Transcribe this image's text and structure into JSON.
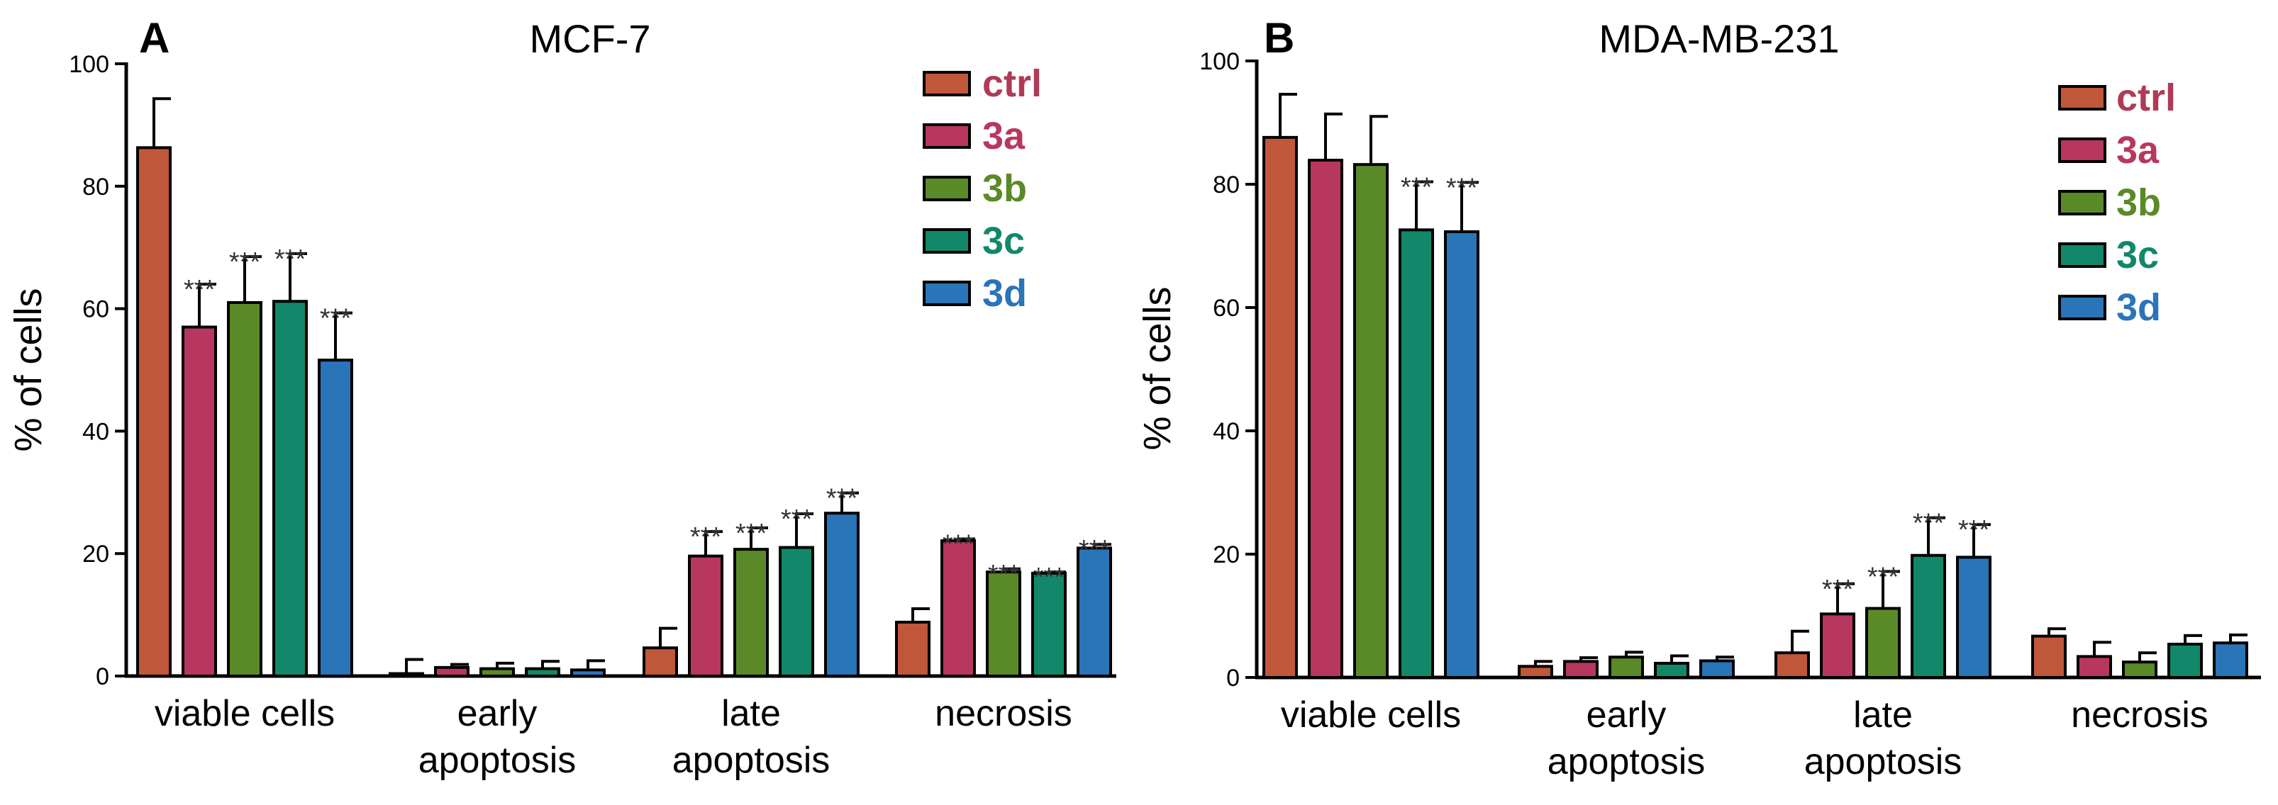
{
  "chart_data": [
    {
      "type": "bar",
      "panel": "A",
      "title": "MCF-7",
      "xlabel": "",
      "ylabel": "% of cells",
      "ylim": [
        0,
        100
      ],
      "yticks": [
        0,
        20,
        40,
        60,
        80,
        100
      ],
      "categories": [
        [
          "viable cells"
        ],
        [
          "early",
          "apoptosis"
        ],
        [
          "late",
          "apoptosis"
        ],
        [
          "necrosis"
        ]
      ],
      "legend_position": "top-right",
      "series": [
        {
          "name": "ctrl",
          "color": "#C0573A",
          "text_color": "#B03A55",
          "values": [
            86.3,
            0.4,
            4.6,
            8.8
          ],
          "errors": [
            8.0,
            2.3,
            3.2,
            2.2
          ],
          "sig": [
            "",
            "",
            "",
            ""
          ]
        },
        {
          "name": "3a",
          "color": "#B8375E",
          "text_color": "#B8375E",
          "values": [
            57.0,
            1.4,
            19.6,
            22.1
          ],
          "errors": [
            7.0,
            0.5,
            4.0,
            0.3
          ],
          "sig": [
            "***",
            "",
            "***",
            "***"
          ]
        },
        {
          "name": "3b",
          "color": "#5A8A28",
          "text_color": "#5A8A28",
          "values": [
            61.0,
            1.2,
            20.7,
            17.0
          ],
          "errors": [
            7.5,
            0.9,
            3.5,
            0.5
          ],
          "sig": [
            "***",
            "",
            "***",
            "***"
          ]
        },
        {
          "name": "3c",
          "color": "#12876A",
          "text_color": "#12876A",
          "values": [
            61.2,
            1.2,
            21.0,
            16.8
          ],
          "errors": [
            7.8,
            1.2,
            5.5,
            0.2
          ],
          "sig": [
            "***",
            "",
            "***",
            "***"
          ]
        },
        {
          "name": "3d",
          "color": "#2A74B8",
          "text_color": "#2A74B8",
          "values": [
            51.6,
            1.0,
            26.6,
            20.9
          ],
          "errors": [
            7.7,
            1.5,
            3.3,
            0.6
          ],
          "sig": [
            "***",
            "",
            "***",
            "***"
          ]
        }
      ]
    },
    {
      "type": "bar",
      "panel": "B",
      "title": "MDA-MB-231",
      "xlabel": "",
      "ylabel": "% of cells",
      "ylim": [
        0,
        100
      ],
      "yticks": [
        0,
        20,
        40,
        60,
        80,
        100
      ],
      "categories": [
        [
          "viable cells"
        ],
        [
          "early",
          "apoptosis"
        ],
        [
          "late",
          "apoptosis"
        ],
        [
          "necrosis"
        ]
      ],
      "legend_position": "top-right",
      "series": [
        {
          "name": "ctrl",
          "color": "#C0573A",
          "text_color": "#B03A55",
          "values": [
            87.6,
            1.8,
            4.0,
            6.7
          ],
          "errors": [
            7.0,
            0.8,
            3.5,
            1.2
          ],
          "sig": [
            "",
            "",
            "",
            ""
          ]
        },
        {
          "name": "3a",
          "color": "#B8375E",
          "text_color": "#B8375E",
          "values": [
            83.9,
            2.6,
            10.3,
            3.4
          ],
          "errors": [
            7.5,
            0.6,
            4.9,
            2.3
          ],
          "sig": [
            "",
            "",
            "***",
            ""
          ]
        },
        {
          "name": "3b",
          "color": "#5A8A28",
          "text_color": "#5A8A28",
          "values": [
            83.2,
            3.3,
            11.2,
            2.5
          ],
          "errors": [
            7.8,
            0.8,
            6.0,
            1.5
          ],
          "sig": [
            "",
            "",
            "***",
            ""
          ]
        },
        {
          "name": "3c",
          "color": "#12876A",
          "text_color": "#12876A",
          "values": [
            72.6,
            2.3,
            19.8,
            5.4
          ],
          "errors": [
            7.8,
            1.2,
            6.1,
            1.4
          ],
          "sig": [
            "***",
            "",
            "***",
            ""
          ]
        },
        {
          "name": "3d",
          "color": "#2A74B8",
          "text_color": "#2A74B8",
          "values": [
            72.3,
            2.7,
            19.5,
            5.6
          ],
          "errors": [
            8.0,
            0.6,
            5.3,
            1.3
          ],
          "sig": [
            "***",
            "",
            "***",
            ""
          ]
        }
      ]
    }
  ]
}
